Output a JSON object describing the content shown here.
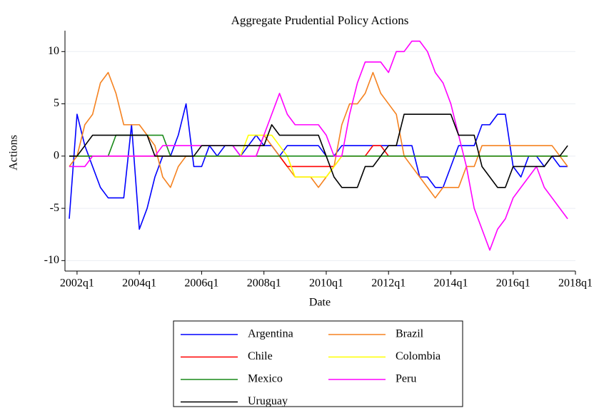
{
  "chart_data": {
    "type": "line",
    "title": "Aggregate Prudential Policy Actions",
    "x_label": "Date",
    "y_label": "Actions",
    "x": [
      "2001q4",
      "2002q1",
      "2002q2",
      "2002q3",
      "2002q4",
      "2003q1",
      "2003q2",
      "2003q3",
      "2003q4",
      "2004q1",
      "2004q2",
      "2004q3",
      "2004q4",
      "2005q1",
      "2005q2",
      "2005q3",
      "2005q4",
      "2006q1",
      "2006q2",
      "2006q3",
      "2006q4",
      "2007q1",
      "2007q2",
      "2007q3",
      "2007q4",
      "2008q1",
      "2008q2",
      "2008q3",
      "2008q4",
      "2009q1",
      "2009q2",
      "2009q3",
      "2009q4",
      "2010q1",
      "2010q2",
      "2010q3",
      "2010q4",
      "2011q1",
      "2011q2",
      "2011q3",
      "2011q4",
      "2012q1",
      "2012q2",
      "2012q3",
      "2012q4",
      "2013q1",
      "2013q2",
      "2013q3",
      "2013q4",
      "2014q1",
      "2014q2",
      "2014q3",
      "2014q4",
      "2015q1",
      "2015q2",
      "2015q3",
      "2015q4",
      "2016q1",
      "2016q2",
      "2016q3",
      "2016q4",
      "2017q1",
      "2017q2",
      "2017q3",
      "2017q4"
    ],
    "xlim": [
      "2001q4",
      "2018q1"
    ],
    "xticks": [
      "2002q1",
      "2004q1",
      "2006q1",
      "2008q1",
      "2010q1",
      "2012q1",
      "2014q1",
      "2016q1",
      "2018q1"
    ],
    "ylim": [
      -11,
      12
    ],
    "yticks": [
      -10,
      -5,
      0,
      5,
      10
    ],
    "grid": true,
    "series": [
      {
        "name": "Argentina",
        "color": "#0000ff",
        "values": [
          -6,
          4,
          1,
          -1,
          -3,
          -4,
          -4,
          -4,
          3,
          -7,
          -5,
          -2,
          0,
          0,
          2,
          5,
          -1,
          -1,
          1,
          0,
          1,
          1,
          0,
          1,
          2,
          1,
          1,
          0,
          1,
          1,
          1,
          1,
          1,
          0,
          0,
          1,
          1,
          1,
          1,
          1,
          1,
          1,
          1,
          1,
          1,
          -2,
          -2,
          -3,
          -3,
          -1,
          1,
          1,
          1,
          3,
          3,
          4,
          4,
          -1,
          -2,
          0,
          0,
          -1,
          0,
          -1,
          -1
        ]
      },
      {
        "name": "Brazil",
        "color": "#f58220",
        "values": [
          -1,
          0,
          3,
          4,
          7,
          8,
          6,
          3,
          3,
          3,
          2,
          1,
          -2,
          -3,
          -1,
          0,
          0,
          0,
          0,
          0,
          0,
          0,
          0,
          0,
          0,
          2,
          1,
          0,
          -1,
          -2,
          -2,
          -2,
          -3,
          -2,
          -1,
          3,
          5,
          5,
          6,
          8,
          6,
          5,
          4,
          0,
          -1,
          -2,
          -3,
          -4,
          -3,
          -3,
          -3,
          -1,
          -1,
          1,
          1,
          1,
          1,
          1,
          1,
          1,
          1,
          1,
          1,
          0,
          -1
        ]
      },
      {
        "name": "Chile",
        "color": "#ff0000",
        "values": [
          0,
          0,
          0,
          0,
          0,
          0,
          0,
          0,
          0,
          0,
          0,
          0,
          0,
          0,
          0,
          0,
          0,
          0,
          0,
          0,
          0,
          0,
          0,
          0,
          0,
          0,
          0,
          0,
          -1,
          -1,
          -1,
          -1,
          -1,
          -1,
          -1,
          0,
          0,
          0,
          0,
          1,
          1,
          0,
          0,
          0,
          0,
          0,
          0,
          0,
          0,
          0,
          0,
          0,
          0,
          0,
          0,
          0,
          0,
          0,
          0,
          0,
          0,
          0,
          0,
          0,
          0
        ]
      },
      {
        "name": "Colombia",
        "color": "#ffff00",
        "values": [
          0,
          0,
          0,
          0,
          0,
          0,
          0,
          0,
          0,
          0,
          0,
          0,
          0,
          0,
          0,
          0,
          0,
          0,
          0,
          0,
          0,
          0,
          0,
          2,
          2,
          2,
          2,
          1,
          0,
          -2,
          -2,
          -2,
          -2,
          -2,
          -1,
          0,
          0,
          0,
          0,
          0,
          0,
          0,
          0,
          0,
          0,
          0,
          0,
          0,
          0,
          0,
          0,
          0,
          0,
          0,
          0,
          0,
          0,
          0,
          0,
          0,
          0,
          0,
          0,
          0,
          0
        ]
      },
      {
        "name": "Mexico",
        "color": "#1a8a1a",
        "values": [
          0,
          0,
          0,
          0,
          0,
          0,
          2,
          2,
          2,
          2,
          2,
          2,
          2,
          0,
          0,
          0,
          0,
          0,
          0,
          0,
          0,
          0,
          0,
          0,
          0,
          0,
          0,
          0,
          0,
          0,
          0,
          0,
          0,
          0,
          0,
          0,
          0,
          0,
          0,
          0,
          0,
          0,
          0,
          0,
          0,
          0,
          0,
          0,
          0,
          0,
          0,
          0,
          0,
          0,
          0,
          0,
          0,
          0,
          0,
          0,
          0,
          0,
          0,
          0,
          0
        ]
      },
      {
        "name": "Peru",
        "color": "#ff00ff",
        "values": [
          -1,
          -1,
          -1,
          0,
          0,
          0,
          0,
          0,
          0,
          0,
          0,
          0,
          1,
          1,
          1,
          1,
          1,
          1,
          1,
          1,
          1,
          1,
          0,
          0,
          0,
          2,
          4,
          6,
          4,
          3,
          3,
          3,
          3,
          2,
          0,
          0,
          4,
          7,
          9,
          9,
          9,
          8,
          10,
          10,
          11,
          11,
          10,
          8,
          7,
          5,
          2,
          -1,
          -5,
          -7,
          -9,
          -7,
          -6,
          -4,
          -3,
          -2,
          -1,
          -3,
          -4,
          -5,
          -6
        ]
      },
      {
        "name": "Uruguay",
        "color": "#000000",
        "values": [
          0,
          0,
          1,
          2,
          2,
          2,
          2,
          2,
          2,
          2,
          2,
          0,
          0,
          0,
          0,
          0,
          0,
          1,
          1,
          1,
          1,
          1,
          1,
          1,
          1,
          1,
          3,
          2,
          2,
          2,
          2,
          2,
          2,
          0,
          -2,
          -3,
          -3,
          -3,
          -1,
          -1,
          0,
          1,
          1,
          4,
          4,
          4,
          4,
          4,
          4,
          4,
          2,
          2,
          2,
          -1,
          -2,
          -3,
          -3,
          -1,
          -1,
          -1,
          -1,
          -1,
          0,
          0,
          1
        ]
      }
    ]
  }
}
